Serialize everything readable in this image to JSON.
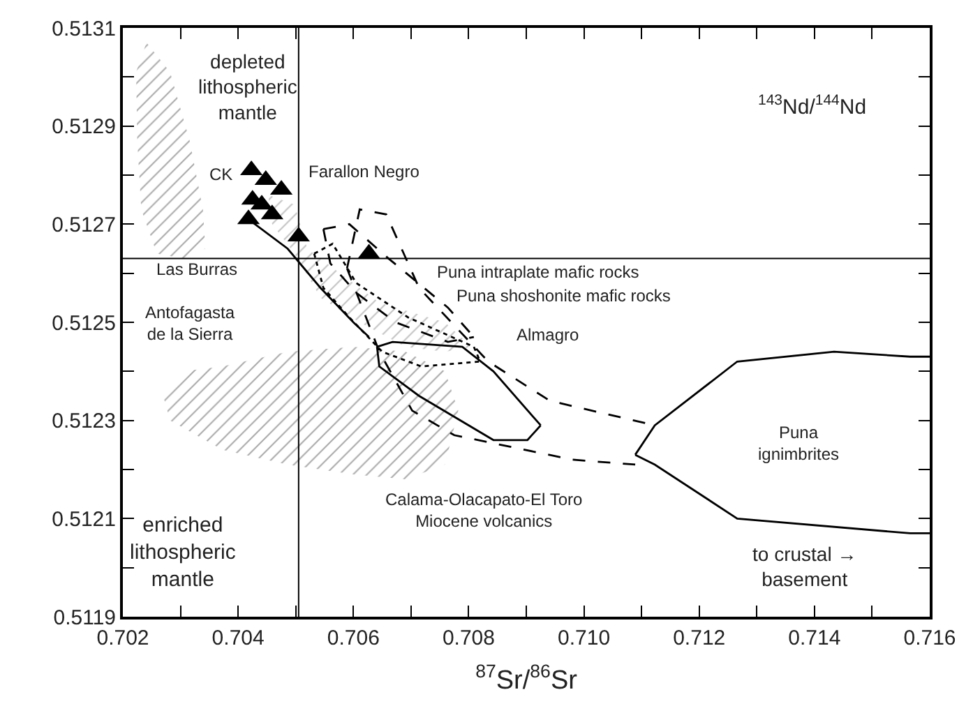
{
  "chart_data": {
    "type": "scatter",
    "xlabel": "$^{87}$Sr/$^{86}$Sr",
    "xlim": [
      0.702,
      0.716
    ],
    "ylim": [
      0.5119,
      0.5131
    ],
    "xticks": [
      0.702,
      {
        "value": 0.703,
        "label": null
      },
      0.704,
      {
        "value": 0.705,
        "label": null
      },
      0.706,
      {
        "value": 0.707,
        "label": null
      },
      0.708,
      {
        "value": 0.709,
        "label": null
      },
      {
        "value": 0.71,
        "label": "0.710"
      },
      {
        "value": 0.711,
        "label": null
      },
      0.712,
      {
        "value": 0.713,
        "label": null
      },
      0.714,
      {
        "value": 0.715,
        "label": null
      },
      0.716
    ],
    "yticks": [
      0.5119,
      {
        "value": 0.512,
        "label": null
      },
      0.5121,
      {
        "value": 0.5122,
        "label": null
      },
      0.5123,
      {
        "value": 0.5124,
        "label": null
      },
      0.5125,
      {
        "value": 0.5126,
        "label": null
      },
      0.5127,
      {
        "value": 0.5128,
        "label": null
      },
      0.5129,
      {
        "value": 0.513,
        "label": null
      },
      0.5131
    ],
    "grid": false,
    "series": [
      {
        "type": "area",
        "color": "#555555",
        "x": [
          0.70241,
          0.70282,
          0.70316,
          0.70339,
          0.70343,
          0.70305,
          0.70259,
          0.70232,
          0.70225,
          0.70223
        ],
        "values": [
          0.51307,
          0.51301,
          0.51287,
          0.51273,
          0.51265,
          0.51263,
          0.51264,
          0.51273,
          0.51287,
          0.51301
        ]
      },
      {
        "type": "area",
        "color": "#555555",
        "x": [
          0.70373,
          0.70486,
          0.706,
          0.70691,
          0.70759,
          0.70782,
          0.70759,
          0.70691,
          0.706,
          0.70486,
          0.70373,
          0.70282,
          0.7027,
          0.70305
        ],
        "values": [
          0.51241,
          0.51244,
          0.51245,
          0.51244,
          0.5124,
          0.51232,
          0.51221,
          0.51218,
          0.51219,
          0.51221,
          0.51224,
          0.5123,
          0.51235,
          0.5124
        ]
      },
      {
        "type": "area",
        "color": "#888888",
        "x": [
          0.70452,
          0.70498,
          0.7052,
          0.70577,
          0.70645,
          0.70759,
          0.70805,
          0.70759,
          0.70691,
          0.70611,
          0.70543,
          0.70498,
          0.70459
        ],
        "values": [
          0.51276,
          0.51274,
          0.51265,
          0.5126,
          0.51254,
          0.5125,
          0.51245,
          0.51244,
          0.51245,
          0.5125,
          0.51255,
          0.51264,
          0.5127
        ]
      },
      {
        "type": "line",
        "color": "#000000",
        "line_style": "dashed",
        "x": [
          0.70589,
          0.70611,
          0.70657,
          0.70714,
          0.70834,
          0.70941,
          0.71123
        ],
        "values": [
          0.51261,
          0.51273,
          0.51272,
          0.51257,
          0.51242,
          0.51234,
          0.51229
        ]
      },
      {
        "type": "line",
        "color": "#000000",
        "line_style": "dashed",
        "x": [
          0.70589,
          0.70645,
          0.70702,
          0.70775,
          0.7098,
          0.71089
        ],
        "values": [
          0.51261,
          0.51244,
          0.51232,
          0.51227,
          0.51222,
          0.51221
        ]
      },
      {
        "type": "line",
        "color": "#000000",
        "line_style": "dotted",
        "x": [
          0.70532,
          0.70564,
          0.70605,
          0.70695,
          0.70809,
          0.7082
        ],
        "values": [
          0.51264,
          0.51266,
          0.51258,
          0.51251,
          0.51245,
          0.51242
        ]
      },
      {
        "type": "line",
        "color": "#000000",
        "line_style": "dotted",
        "x": [
          0.70532,
          0.70548,
          0.70593,
          0.7065,
          0.70718,
          0.7082
        ],
        "values": [
          0.51264,
          0.51257,
          0.51251,
          0.51244,
          0.51241,
          0.51242
        ]
      },
      {
        "type": "line",
        "color": "#000000",
        "line_style": "dashed",
        "x": [
          0.70548,
          0.70593,
          0.70661,
          0.70764,
          0.70809
        ],
        "values": [
          0.51269,
          0.5127,
          0.51263,
          0.51253,
          0.51247
        ]
      },
      {
        "type": "line",
        "color": "#000000",
        "line_style": "dashed",
        "x": [
          0.70548,
          0.7056,
          0.70605,
          0.70673,
          0.70764,
          0.70809
        ],
        "values": [
          0.51269,
          0.51262,
          0.51256,
          0.5125,
          0.51246,
          0.51247
        ]
      },
      {
        "type": "line",
        "color": "#000000",
        "line_style": "solid",
        "x": [
          0.70641,
          0.70668,
          0.70789,
          0.70843,
          0.70925
        ],
        "values": [
          0.51245,
          0.51246,
          0.51245,
          0.5124,
          0.51229
        ]
      },
      {
        "type": "line",
        "color": "#000000",
        "line_style": "solid",
        "x": [
          0.70641,
          0.70645,
          0.70714,
          0.70843,
          0.70902,
          0.70925
        ],
        "values": [
          0.51245,
          0.51241,
          0.51235,
          0.51226,
          0.51226,
          0.51229
        ]
      },
      {
        "type": "line",
        "color": "#000000",
        "line_style": "solid",
        "x": [
          0.71089,
          0.71123,
          0.71266,
          0.71434,
          0.71566,
          0.716
        ],
        "values": [
          0.51223,
          0.51229,
          0.51242,
          0.51244,
          0.51243,
          0.51243
        ]
      },
      {
        "type": "line",
        "color": "#000000",
        "line_style": "solid",
        "x": [
          0.71089,
          0.71123,
          0.71266,
          0.71566,
          0.716
        ],
        "values": [
          0.51223,
          0.51221,
          0.5121,
          0.51207,
          0.51207
        ]
      },
      {
        "type": "line",
        "color": "#000000",
        "line_style": "solid",
        "x": [
          0.70418,
          0.70486,
          0.70543,
          0.706,
          0.70627
        ],
        "values": [
          0.51271,
          0.51265,
          0.51257,
          0.5125,
          0.51247
        ]
      },
      {
        "color": "#000000",
        "marker": "triangle",
        "x": [
          0.70423,
          0.70448,
          0.70475,
          0.70425,
          0.70418,
          0.70459,
          0.70441,
          0.70505,
          0.70627
        ],
        "values": [
          0.51281,
          0.51279,
          0.51277,
          0.51275,
          0.51271,
          0.51272,
          0.51274,
          0.512675,
          0.51264
        ]
      }
    ],
    "ref_lines": [
      {
        "axis": "x",
        "value": 0.70505,
        "color": "#000000"
      },
      {
        "axis": "y",
        "value": 0.51263,
        "color": "#000000"
      }
    ],
    "annotations": [
      "depleted\nlithospheric\nmantle",
      "enriched\nlithospheric\nmantle",
      "CK",
      "Las Burras",
      "Antofagasta\nde la Sierra",
      "Farallon Negro",
      "Puna intraplate mafic rocks",
      "Puna shoshonite mafic rocks",
      "Almagro",
      "Calama-Olacapato-El Toro\nMiocene volcanics",
      "Puna\nignimbrites",
      "to crustal →\nbasement",
      "$^{143}$Nd/$^{144}$Nd"
    ]
  }
}
